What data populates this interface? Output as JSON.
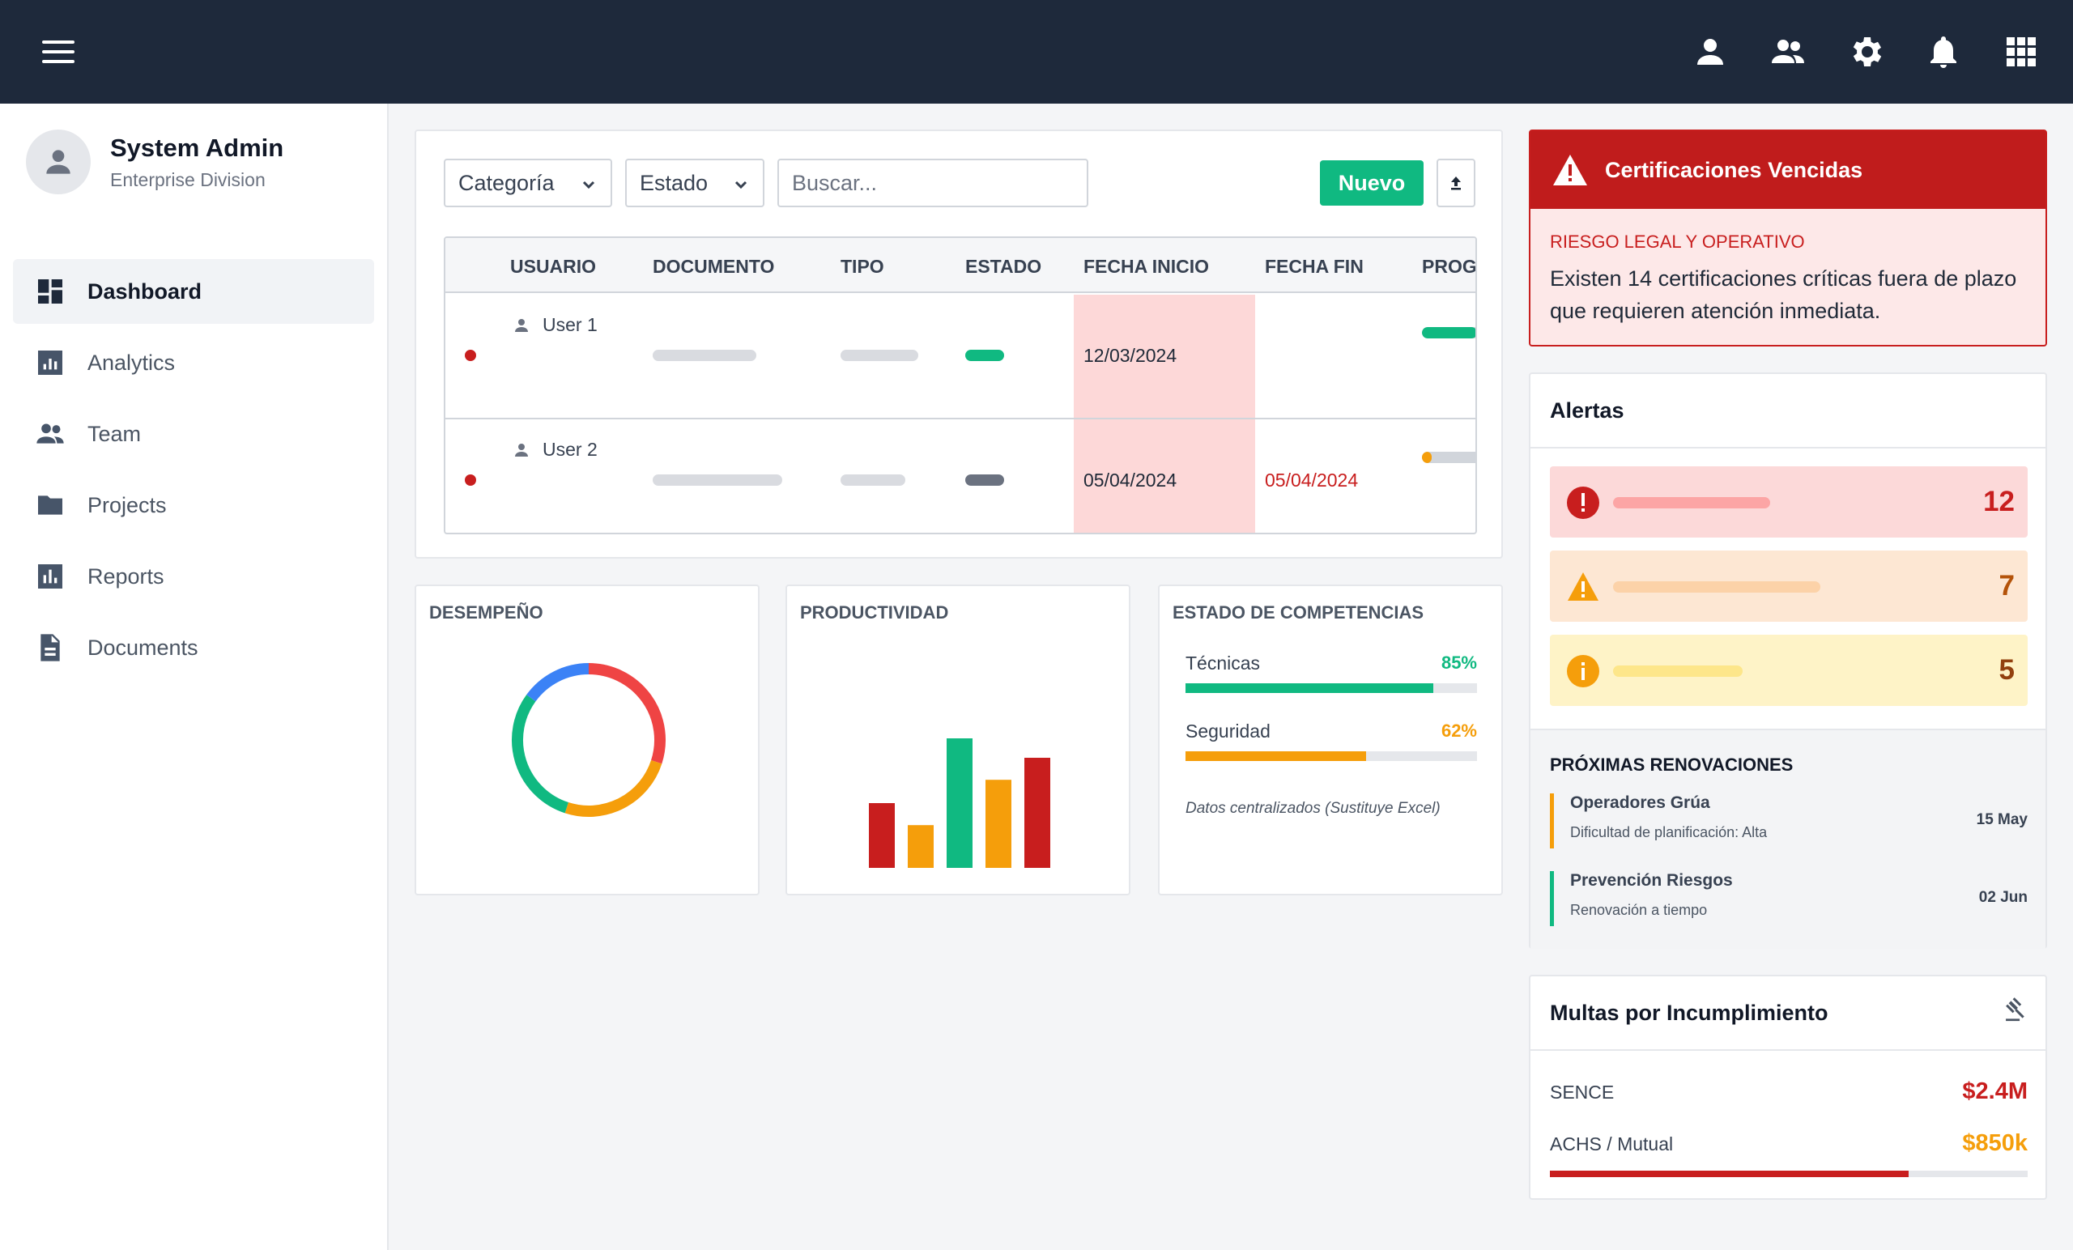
{
  "topbar": {
    "icons": [
      "menu-icon",
      "user-icon",
      "group-icon",
      "settings-icon",
      "bell-icon",
      "apps-grid-icon"
    ]
  },
  "profile": {
    "name": "System Admin",
    "org": "Enterprise Division"
  },
  "nav": [
    {
      "label": "Dashboard",
      "icon": "dashboard-icon",
      "active": true
    },
    {
      "label": "Analytics",
      "icon": "analytics-icon",
      "active": false
    },
    {
      "label": "Team",
      "icon": "team-icon",
      "active": false
    },
    {
      "label": "Projects",
      "icon": "folder-icon",
      "active": false
    },
    {
      "label": "Reports",
      "icon": "reports-icon",
      "active": false
    },
    {
      "label": "Documents",
      "icon": "document-icon",
      "active": false
    }
  ],
  "filters": {
    "category": "Categoría",
    "status": "Estado",
    "search_placeholder": "Buscar...",
    "new_label": "Nuevo"
  },
  "table": {
    "headers": [
      "USUARIO",
      "DOCUMENTO",
      "TIPO",
      "ESTADO",
      "FECHA INICIO",
      "FECHA FIN",
      "PROG"
    ],
    "rows": [
      {
        "user": "User 1",
        "start": "12/03/2024",
        "end": "",
        "status_color": "#10b981",
        "progress": 0.85,
        "progress_color": "#10b981"
      },
      {
        "user": "User 2",
        "start": "05/04/2024",
        "end": "05/04/2024",
        "status_color": "#6b7280",
        "progress": 0.15,
        "progress_color": "#f59e0b"
      }
    ]
  },
  "cards": {
    "performance_title": "DESEMPEÑO",
    "productivity_title": "PRODUCTIVIDAD",
    "competencies_title": "ESTADO DE COMPETENCIAS",
    "competencies": [
      {
        "label": "Técnicas",
        "pct_text": "85%",
        "pct": 0.85,
        "color": "#10b981"
      },
      {
        "label": "Seguridad",
        "pct_text": "62%",
        "pct": 0.62,
        "color": "#f59e0b"
      }
    ],
    "competencies_note": "Datos centralizados (Sustituye Excel)"
  },
  "chart_data": [
    {
      "type": "pie",
      "title": "DESEMPEÑO",
      "donut": true,
      "segments": [
        {
          "value": 30,
          "color": "#ef4444"
        },
        {
          "value": 25,
          "color": "#f59e0b"
        },
        {
          "value": 30,
          "color": "#10b981"
        },
        {
          "value": 15,
          "color": "#3b82f6"
        }
      ]
    },
    {
      "type": "bar",
      "title": "PRODUCTIVIDAD",
      "values": [
        50,
        33,
        100,
        68,
        85
      ],
      "colors": [
        "#c81e1e",
        "#f59e0b",
        "#10b981",
        "#f59e0b",
        "#c81e1e"
      ],
      "ylim": [
        0,
        100
      ]
    }
  ],
  "alert": {
    "title": "Certificaciones Vencidas",
    "subtitle": "RIESGO LEGAL Y OPERATIVO",
    "body": "Existen 14 certificaciones críticas fuera de plazo que requieren atención inmediata."
  },
  "alerts": {
    "title": "Alertas",
    "items": [
      {
        "count": "12",
        "level": "error",
        "icon": "error-icon",
        "bg": "#fcd9d9",
        "color": "#c81e1e",
        "bar": "#fca5a5"
      },
      {
        "count": "7",
        "level": "warning",
        "icon": "warning-icon",
        "bg": "#fde7d3",
        "color": "#b45309",
        "bar": "#fcd2a8"
      },
      {
        "count": "5",
        "level": "info",
        "icon": "info-icon",
        "bg": "#fef3c7",
        "color": "#92400e",
        "bar": "#fde68a"
      }
    ]
  },
  "renewals": {
    "title": "PRÓXIMAS RENOVACIONES",
    "items": [
      {
        "name": "Operadores Grúa",
        "meta": "Dificultad de planificación: Alta",
        "date": "15 May",
        "color": "#f59e0b"
      },
      {
        "name": "Prevención Riesgos",
        "meta": "Renovación a tiempo",
        "date": "02 Jun",
        "color": "#10b981"
      }
    ]
  },
  "fines": {
    "title": "Multas por Incumplimiento",
    "items": [
      {
        "label": "SENCE",
        "value": "$2.4M",
        "color": "#c81e1e"
      },
      {
        "label": "ACHS / Mutual",
        "value": "$850k",
        "color": "#f59e0b"
      }
    ],
    "bar_fill": 0.75
  }
}
